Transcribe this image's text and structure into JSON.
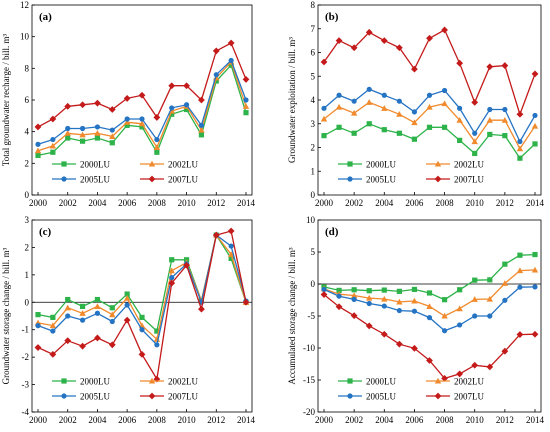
{
  "chart_data": [
    {
      "type": "line",
      "panel_label": "(a)",
      "ylabel": "Total groundwater recharge / bill. m³",
      "xlabel": "",
      "xlim": [
        2000,
        2014
      ],
      "ylim": [
        0,
        12
      ],
      "xticks": [
        2000,
        2002,
        2004,
        2006,
        2008,
        2010,
        2012,
        2014
      ],
      "yticks": [
        0,
        2,
        4,
        6,
        8,
        10,
        12
      ],
      "zero_line": false,
      "legend_position": "bottom",
      "x": [
        2000,
        2001,
        2002,
        2003,
        2004,
        2005,
        2006,
        2007,
        2008,
        2009,
        2010,
        2011,
        2012,
        2013,
        2014
      ],
      "series": [
        {
          "name": "2000LU",
          "color": "#2db34a",
          "marker": "square",
          "values": [
            2.5,
            2.7,
            3.6,
            3.4,
            3.6,
            3.3,
            4.4,
            4.3,
            2.7,
            5.1,
            5.4,
            3.8,
            7.2,
            8.2,
            5.2
          ]
        },
        {
          "name": "2002LU",
          "color": "#f08a2c",
          "marker": "triangle",
          "values": [
            2.8,
            3.1,
            3.9,
            3.8,
            3.9,
            3.7,
            4.6,
            4.5,
            3.0,
            5.3,
            5.6,
            4.1,
            7.4,
            8.4,
            5.6
          ]
        },
        {
          "name": "2005LU",
          "color": "#2574c4",
          "marker": "circle",
          "values": [
            3.2,
            3.5,
            4.2,
            4.2,
            4.3,
            4.1,
            4.8,
            4.8,
            3.5,
            5.5,
            5.7,
            4.4,
            7.6,
            8.5,
            6.0
          ]
        },
        {
          "name": "2007LU",
          "color": "#c41a1a",
          "marker": "diamond",
          "values": [
            4.3,
            4.8,
            5.6,
            5.7,
            5.8,
            5.4,
            6.1,
            6.3,
            4.9,
            6.9,
            6.9,
            6.0,
            9.1,
            9.6,
            7.3
          ]
        }
      ]
    },
    {
      "type": "line",
      "panel_label": "(b)",
      "ylabel": "Groundwater exploitation / bill. m³",
      "xlabel": "",
      "xlim": [
        2000,
        2014
      ],
      "ylim": [
        0,
        8
      ],
      "xticks": [
        2000,
        2002,
        2004,
        2006,
        2008,
        2010,
        2012,
        2014
      ],
      "yticks": [
        0,
        1,
        2,
        3,
        4,
        5,
        6,
        7,
        8
      ],
      "zero_line": false,
      "legend_position": "bottom",
      "x": [
        2000,
        2001,
        2002,
        2003,
        2004,
        2005,
        2006,
        2007,
        2008,
        2009,
        2010,
        2011,
        2012,
        2013,
        2014
      ],
      "series": [
        {
          "name": "2000LU",
          "color": "#2db34a",
          "marker": "square",
          "values": [
            2.5,
            2.85,
            2.6,
            3.0,
            2.75,
            2.6,
            2.35,
            2.85,
            2.85,
            2.3,
            1.75,
            2.55,
            2.5,
            1.55,
            2.15
          ]
        },
        {
          "name": "2002LU",
          "color": "#f08a2c",
          "marker": "triangle",
          "values": [
            3.2,
            3.7,
            3.45,
            3.9,
            3.65,
            3.4,
            3.05,
            3.7,
            3.85,
            3.15,
            2.25,
            3.15,
            3.15,
            1.95,
            2.9
          ]
        },
        {
          "name": "2005LU",
          "color": "#2574c4",
          "marker": "circle",
          "values": [
            3.65,
            4.2,
            3.95,
            4.45,
            4.2,
            3.95,
            3.5,
            4.2,
            4.4,
            3.65,
            2.6,
            3.6,
            3.6,
            2.25,
            3.35
          ]
        },
        {
          "name": "2007LU",
          "color": "#c41a1a",
          "marker": "diamond",
          "values": [
            5.6,
            6.5,
            6.2,
            6.85,
            6.5,
            6.2,
            5.3,
            6.6,
            6.95,
            5.55,
            3.9,
            5.4,
            5.45,
            3.4,
            5.1
          ]
        }
      ]
    },
    {
      "type": "line",
      "panel_label": "(c)",
      "ylabel": "Groundwater storage change / bill. m³",
      "xlabel": "",
      "xlim": [
        2000,
        2014
      ],
      "ylim": [
        -4,
        3
      ],
      "xticks": [
        2000,
        2002,
        2004,
        2006,
        2008,
        2010,
        2012,
        2014
      ],
      "yticks": [
        -4,
        -3,
        -2,
        -1,
        0,
        1,
        2,
        3
      ],
      "zero_line": true,
      "legend_position": "bottom",
      "x": [
        2000,
        2001,
        2002,
        2003,
        2004,
        2005,
        2006,
        2007,
        2008,
        2009,
        2010,
        2011,
        2012,
        2013,
        2014
      ],
      "series": [
        {
          "name": "2000LU",
          "color": "#2db34a",
          "marker": "square",
          "values": [
            -0.45,
            -0.55,
            0.1,
            -0.15,
            0.1,
            -0.2,
            0.3,
            -0.55,
            -1.05,
            1.55,
            1.55,
            0.05,
            2.45,
            1.6,
            0.0
          ]
        },
        {
          "name": "2002LU",
          "color": "#f08a2c",
          "marker": "triangle",
          "values": [
            -0.75,
            -0.85,
            -0.2,
            -0.4,
            -0.15,
            -0.45,
            0.15,
            -0.85,
            -1.35,
            1.15,
            1.45,
            0.05,
            2.45,
            1.75,
            0.0
          ]
        },
        {
          "name": "2005LU",
          "color": "#2574c4",
          "marker": "circle",
          "values": [
            -0.85,
            -1.05,
            -0.5,
            -0.65,
            -0.4,
            -0.7,
            -0.1,
            -1.0,
            -1.55,
            0.9,
            1.4,
            0.0,
            2.45,
            2.05,
            0.05
          ]
        },
        {
          "name": "2007LU",
          "color": "#c41a1a",
          "marker": "diamond",
          "values": [
            -1.65,
            -1.9,
            -1.4,
            -1.6,
            -1.3,
            -1.55,
            -0.65,
            -1.9,
            -2.8,
            0.7,
            1.35,
            -0.25,
            2.45,
            2.6,
            0.0
          ]
        }
      ]
    },
    {
      "type": "line",
      "panel_label": "(d)",
      "ylabel": "Accumulated storage change / bill. m³",
      "xlabel": "",
      "xlim": [
        2000,
        2014
      ],
      "ylim": [
        -20,
        10
      ],
      "xticks": [
        2000,
        2002,
        2004,
        2006,
        2008,
        2010,
        2012,
        2014
      ],
      "yticks": [
        -20,
        -15,
        -10,
        -5,
        0,
        5,
        10
      ],
      "zero_line": true,
      "legend_position": "bottom",
      "x": [
        2000,
        2001,
        2002,
        2003,
        2004,
        2005,
        2006,
        2007,
        2008,
        2009,
        2010,
        2011,
        2012,
        2013,
        2014
      ],
      "series": [
        {
          "name": "2000LU",
          "color": "#2db34a",
          "marker": "square",
          "values": [
            -0.45,
            -1.0,
            -0.9,
            -1.05,
            -0.95,
            -1.15,
            -0.85,
            -1.4,
            -2.45,
            -0.9,
            0.6,
            0.65,
            3.1,
            4.5,
            4.6
          ]
        },
        {
          "name": "2002LU",
          "color": "#f08a2c",
          "marker": "triangle",
          "values": [
            -0.75,
            -1.6,
            -1.8,
            -2.2,
            -2.35,
            -2.8,
            -2.65,
            -3.5,
            -5.0,
            -3.85,
            -2.4,
            -2.35,
            0.1,
            2.1,
            2.2
          ]
        },
        {
          "name": "2005LU",
          "color": "#2574c4",
          "marker": "circle",
          "values": [
            -0.85,
            -1.9,
            -2.4,
            -3.05,
            -3.45,
            -4.15,
            -4.25,
            -5.25,
            -7.3,
            -6.4,
            -5.0,
            -5.0,
            -2.55,
            -0.5,
            -0.45
          ]
        },
        {
          "name": "2007LU",
          "color": "#c41a1a",
          "marker": "diamond",
          "values": [
            -1.65,
            -3.55,
            -4.95,
            -6.55,
            -7.85,
            -9.4,
            -10.05,
            -11.95,
            -14.75,
            -14.05,
            -12.7,
            -12.95,
            -10.5,
            -7.9,
            -7.85
          ]
        }
      ]
    }
  ]
}
